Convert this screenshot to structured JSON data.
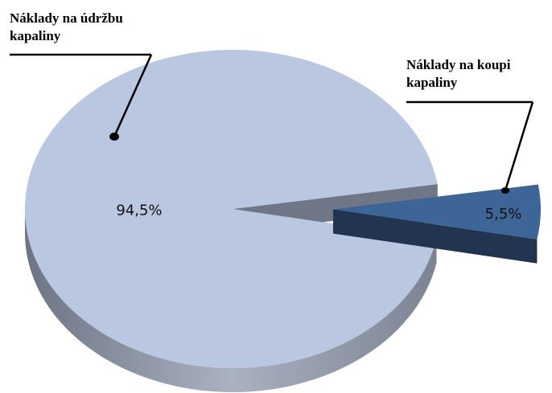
{
  "chart_data": {
    "type": "pie",
    "categories": [
      "Náklady na údržbu kapaliny",
      "Náklady na koupi kapaliny"
    ],
    "values": [
      94.5,
      5.5
    ],
    "value_labels": [
      "94,5%",
      "5,5%"
    ],
    "colors": [
      "#b9c7e1",
      "#3e6597"
    ]
  }
}
